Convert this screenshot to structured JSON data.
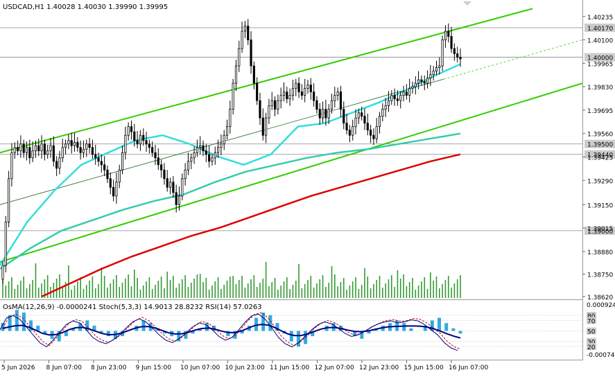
{
  "header": {
    "main_info": "USDCAD,H1  1.40028 1.40030 1.39990 1.39995",
    "osc_info": "OsMA(12,26,9) -0.0000241  Stoch(5,3,3) 14.9013 28.8232  RSI(14) 57.0263"
  },
  "colors": {
    "background": "#ffffff",
    "bull_candle": "#000000",
    "bear_candle": "#000000",
    "channel": "#33cc00",
    "ema_fast": "#33dddd",
    "ema_mid": "#33ccaa",
    "ema_slow": "#dd0000",
    "volume": "#339933",
    "osma": "#33aadd",
    "stoch_main": "#000080",
    "stoch_signal": "#cc0000",
    "rsi": "#cc00cc",
    "level_line": "#888888",
    "badge_bg": "#cccccc"
  },
  "chart_data": [
    {
      "type": "candlestick",
      "symbol": "USDCAD",
      "timeframe": "H1",
      "ylim": [
        1.3862,
        1.4025
      ],
      "y_ticks": [
        "1.40235",
        "1.40100",
        "1.39965",
        "1.39830",
        "1.39695",
        "1.39560",
        "1.39425",
        "1.39290",
        "1.39150",
        "1.39015",
        "1.38880",
        "1.38750",
        "1.38620"
      ],
      "level_badges": [
        "1.40170",
        "1.40000",
        "1.39500",
        "1.39440",
        "1.39000"
      ],
      "level_values": [
        1.4017,
        1.4,
        1.395,
        1.3944,
        1.39
      ],
      "x_ticks": [
        "5 Jun 2026",
        "8 Jun 07:00",
        "8 Jun 23:00",
        "9 Jun 15:00",
        "10 Jun 07:00",
        "10 Jun 23:00",
        "11 Jun 15:00",
        "12 Jun 07:00",
        "12 Jun 23:00",
        "15 Jun 15:00",
        "16 Jun 07:00"
      ],
      "closes": [
        1.388,
        1.3905,
        1.393,
        1.3945,
        1.3948,
        1.3946,
        1.395,
        1.3945,
        1.3948,
        1.3942,
        1.3946,
        1.3949,
        1.3946,
        1.395,
        1.3944,
        1.3946,
        1.3949,
        1.394,
        1.3936,
        1.3942,
        1.3948,
        1.395,
        1.3952,
        1.3949,
        1.3951,
        1.3948,
        1.3945,
        1.3947,
        1.395,
        1.3948,
        1.3944,
        1.3942,
        1.394,
        1.3938,
        1.3935,
        1.393,
        1.3925,
        1.392,
        1.3928,
        1.3935,
        1.3945,
        1.3955,
        1.396,
        1.3957,
        1.3952,
        1.395,
        1.3955,
        1.3952,
        1.395,
        1.3948,
        1.3945,
        1.3942,
        1.3938,
        1.3935,
        1.393,
        1.3925,
        1.3928,
        1.3922,
        1.3915,
        1.392,
        1.393,
        1.3935,
        1.394,
        1.3942,
        1.3945,
        1.3948,
        1.3949,
        1.3946,
        1.3944,
        1.394,
        1.3942,
        1.3945,
        1.3948,
        1.395,
        1.3955,
        1.396,
        1.397,
        1.3985,
        1.3995,
        1.4005,
        1.4015,
        1.4018,
        1.401,
        1.3995,
        1.3985,
        1.3975,
        1.3965,
        1.3955,
        1.3965,
        1.3972,
        1.3975,
        1.397,
        1.3975,
        1.3978,
        1.398,
        1.3976,
        1.3978,
        1.3982,
        1.3985,
        1.398,
        1.3978,
        1.3982,
        1.3984,
        1.398,
        1.3975,
        1.397,
        1.3965,
        1.397,
        1.3965,
        1.397,
        1.3975,
        1.3978,
        1.398,
        1.397,
        1.3962,
        1.3958,
        1.3955,
        1.396,
        1.3965,
        1.3968,
        1.3966,
        1.3962,
        1.3958,
        1.3955,
        1.3953,
        1.396,
        1.3966,
        1.397,
        1.3972,
        1.3975,
        1.3978,
        1.3976,
        1.3975,
        1.3978,
        1.398,
        1.3978,
        1.3982,
        1.3983,
        1.3985,
        1.3987,
        1.3986,
        1.3985,
        1.3988,
        1.399,
        1.3992,
        1.3994,
        1.3995,
        1.401,
        1.4015,
        1.4012,
        1.4005,
        1.4002,
        1.4,
        1.3999
      ],
      "ema_fast_values": [
        1.388,
        1.3905,
        1.3923,
        1.3938,
        1.3945,
        1.3952,
        1.3955,
        1.395,
        1.3943,
        1.3938,
        1.3944,
        1.396,
        1.3962,
        1.3968,
        1.3974,
        1.3981,
        1.3989,
        1.3996
      ],
      "ema_mid_values": [
        1.3878,
        1.389,
        1.39,
        1.3906,
        1.3912,
        1.3917,
        1.3921,
        1.3928,
        1.3934,
        1.3938,
        1.3942,
        1.3945,
        1.3947,
        1.395,
        1.3953,
        1.3956
      ],
      "ema_slow_values": [
        1.3862,
        1.387,
        1.3878,
        1.3885,
        1.3891,
        1.3897,
        1.3902,
        1.3908,
        1.3914,
        1.392,
        1.3925,
        1.393,
        1.3935,
        1.394,
        1.3944
      ],
      "channel": {
        "upper": [
          1.3945,
          1.4028
        ],
        "lower": [
          1.3882,
          1.3985
        ],
        "mid": [
          1.3915,
          1.401
        ]
      }
    },
    {
      "type": "oscillator",
      "ylim": [
        -0.000745,
        0.000924
      ],
      "y_ticks": [
        "0.000924",
        "-0.000745"
      ],
      "level_labels": [
        "80",
        "70",
        "50",
        "30",
        "20"
      ],
      "levels": [
        80,
        70,
        50,
        30,
        20
      ],
      "osma_values": [
        0.0003,
        0.0006,
        0.0008,
        0.0007,
        0.0004,
        0.0002,
        -0.0001,
        -0.0003,
        -0.0004,
        -0.0002,
        0.0001,
        0.0003,
        0.0004,
        0.0002,
        -0.0001,
        -0.0002,
        -0.0003,
        -0.0002,
        0.0,
        0.0002,
        0.0004,
        0.0003,
        0.0001,
        -0.0001,
        -0.0002,
        -0.0004,
        -0.0003,
        -0.0001,
        0.0001,
        0.0003,
        0.0002,
        0.0,
        -0.0002,
        -0.0003,
        -0.0001,
        0.0002,
        0.0005,
        0.0007,
        0.0006,
        0.0003,
        -0.0001,
        -0.0004,
        -0.0006,
        -0.0005,
        -0.0002,
        0.0,
        0.0002,
        0.0003,
        0.0002,
        0.0,
        -0.0002,
        -0.0003,
        -0.0001,
        0.0001,
        0.0002,
        0.0003,
        0.0004,
        0.0003,
        0.0001,
        0.0,
        0.0002,
        0.0004,
        0.0005,
        0.0003,
        0.0001,
        -0.0001
      ],
      "stoch_values": [
        55,
        78,
        82,
        75,
        60,
        45,
        30,
        22,
        35,
        50,
        65,
        72,
        68,
        55,
        40,
        32,
        28,
        35,
        45,
        58,
        70,
        76,
        70,
        58,
        45,
        35,
        30,
        38,
        48,
        60,
        68,
        65,
        55,
        42,
        35,
        40,
        55,
        70,
        82,
        85,
        75,
        58,
        40,
        28,
        22,
        30,
        42,
        55,
        65,
        70,
        66,
        58,
        48,
        42,
        45,
        52,
        60,
        66,
        70,
        72,
        68,
        70,
        74,
        72,
        65,
        55,
        45,
        30,
        20,
        15
      ]
    }
  ]
}
